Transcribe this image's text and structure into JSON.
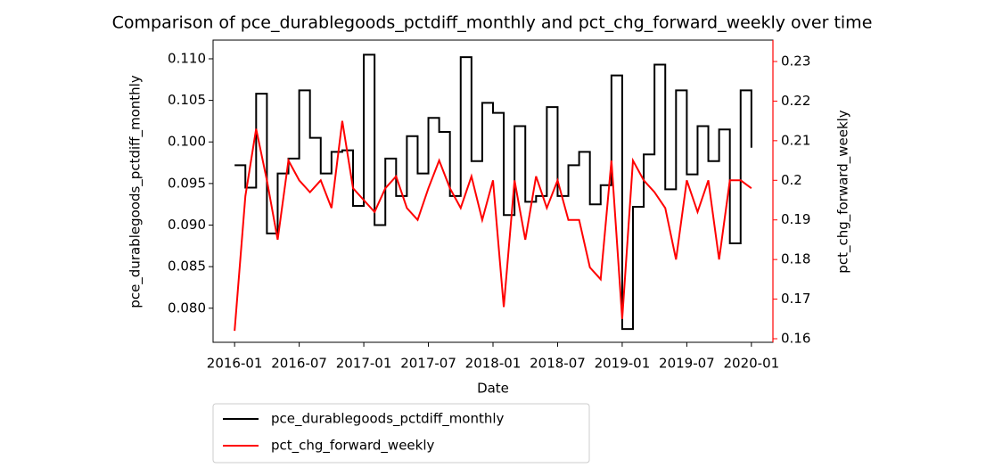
{
  "chart_data": {
    "type": "line",
    "title": "Comparison of pce_durablegoods_pctdiff_monthly and pct_chg_forward_weekly over time",
    "x_label": "Date",
    "y_label": "pce_durablegoods_pctdiff_monthly",
    "y2_label": "pct_chg_forward_weekly",
    "x": [
      "2016-01",
      "2016-02",
      "2016-03",
      "2016-04",
      "2016-05",
      "2016-06",
      "2016-07",
      "2016-08",
      "2016-09",
      "2016-10",
      "2016-11",
      "2016-12",
      "2017-01",
      "2017-02",
      "2017-03",
      "2017-04",
      "2017-05",
      "2017-06",
      "2017-07",
      "2017-08",
      "2017-09",
      "2017-10",
      "2017-11",
      "2017-12",
      "2018-01",
      "2018-02",
      "2018-03",
      "2018-04",
      "2018-05",
      "2018-06",
      "2018-07",
      "2018-08",
      "2018-09",
      "2018-10",
      "2018-11",
      "2018-12",
      "2019-01",
      "2019-02",
      "2019-03",
      "2019-04",
      "2019-05",
      "2019-06",
      "2019-07",
      "2019-08",
      "2019-09",
      "2019-10",
      "2019-11",
      "2019-12",
      "2020-01"
    ],
    "series": [
      {
        "name": "pce_durablegoods_pctdiff_monthly",
        "color": "#000000",
        "step": true,
        "values": [
          0.0972,
          0.0945,
          0.1058,
          0.089,
          0.0962,
          0.098,
          0.1062,
          0.1005,
          0.0962,
          0.0988,
          0.099,
          0.0923,
          0.1105,
          0.09,
          0.098,
          0.0935,
          0.1007,
          0.0962,
          0.1029,
          0.1012,
          0.0935,
          0.1102,
          0.0977,
          0.1047,
          0.1035,
          0.0912,
          0.1019,
          0.0928,
          0.0935,
          0.1042,
          0.0935,
          0.0972,
          0.0988,
          0.0925,
          0.0948,
          0.108,
          0.0775,
          0.0922,
          0.0985,
          0.1093,
          0.0943,
          0.1062,
          0.0961,
          0.1019,
          0.0977,
          0.1015,
          0.0878,
          0.1062,
          0.0993
        ]
      },
      {
        "name": "pct_chg_forward_weekly",
        "color": "#ff0000",
        "axis": "y2",
        "values": [
          0.162,
          0.196,
          0.213,
          0.2,
          0.185,
          0.205,
          0.2,
          0.197,
          0.2,
          0.193,
          0.215,
          0.198,
          0.195,
          0.192,
          0.198,
          0.201,
          0.193,
          0.19,
          0.198,
          0.205,
          0.198,
          0.193,
          0.201,
          0.19,
          0.2,
          0.168,
          0.2,
          0.185,
          0.201,
          0.193,
          0.2,
          0.19,
          0.19,
          0.178,
          0.175,
          0.205,
          0.165,
          0.205,
          0.2,
          0.197,
          0.193,
          0.18,
          0.2,
          0.192,
          0.2,
          0.18,
          0.2,
          0.2,
          0.198
        ]
      }
    ],
    "xlim": [
      "2015-11",
      "2020-03"
    ],
    "xticks": [
      "2016-01",
      "2016-07",
      "2017-01",
      "2017-07",
      "2018-01",
      "2018-07",
      "2019-01",
      "2019-07",
      "2020-01"
    ],
    "ylim": [
      0.0759,
      0.11225
    ],
    "yticks": [
      {
        "value": 0.08,
        "label": "0.080"
      },
      0.085,
      {
        "value": 0.09,
        "label": "0.090"
      },
      0.095,
      {
        "value": 0.1,
        "label": "0.100"
      },
      0.105,
      {
        "value": 0.11,
        "label": "0.110"
      }
    ],
    "y2lim": [
      0.1591,
      0.2354
    ],
    "y2ticks": [
      0.16,
      0.17,
      0.18,
      0.19,
      0.2,
      0.21,
      0.22,
      0.23
    ],
    "y2_color": "#ff0000",
    "legend": "below"
  }
}
